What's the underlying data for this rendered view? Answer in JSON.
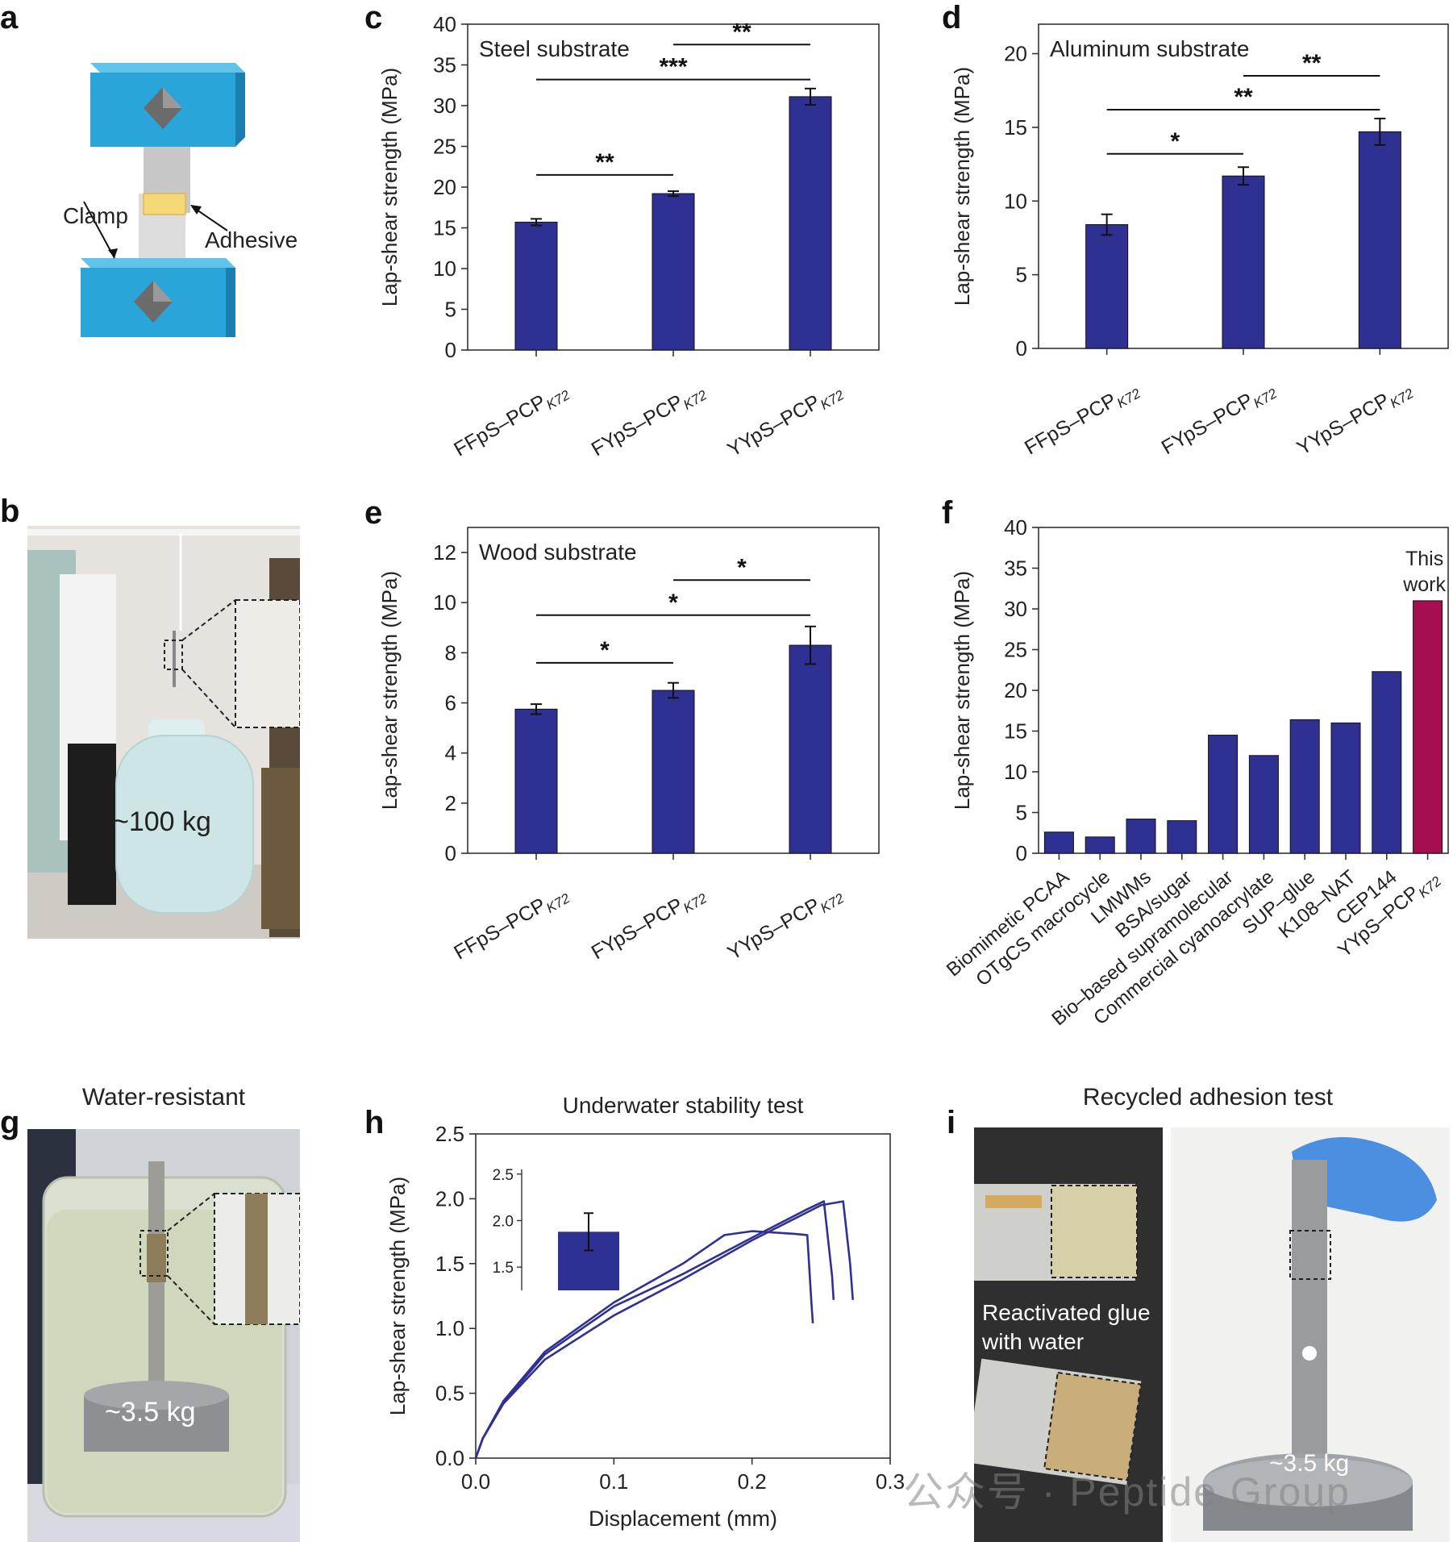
{
  "panels": {
    "a": {
      "letter": "a",
      "clamp_label": "Clamp",
      "adhesive_label": "Adhesive"
    },
    "b": {
      "letter": "b",
      "weight_label": "~100 kg"
    },
    "c": {
      "letter": "c"
    },
    "d": {
      "letter": "d"
    },
    "e": {
      "letter": "e"
    },
    "f": {
      "letter": "f"
    },
    "g": {
      "letter": "g",
      "title": "Water-resistant",
      "weight_label": "~3.5 kg"
    },
    "h": {
      "letter": "h"
    },
    "i": {
      "letter": "i",
      "title": "Recycled adhesion test",
      "note_line1": "Reactivated glue",
      "note_line2": "with water",
      "weight_label": "~3.5 kg"
    }
  },
  "watermark": {
    "text": "公众号 · Peptide Group"
  },
  "colors": {
    "bar": "#2e3192",
    "highlight": "#a50f52",
    "axis": "#333333",
    "clamp": "#2aa5d9",
    "adhesive": "#f5d878"
  },
  "chart_data": [
    {
      "id": "c",
      "type": "bar",
      "title": "Steel substrate",
      "ylabel": "Lap-shear strength (MPa)",
      "categories": [
        "FFpS–PCP",
        "FYpS–PCP",
        "YYpS–PCP"
      ],
      "category_subscript": "K72",
      "values": [
        15.7,
        19.2,
        31.1
      ],
      "errors": [
        0.4,
        0.3,
        1.0
      ],
      "ylim": [
        0,
        40
      ],
      "yticks": [
        0,
        5,
        10,
        15,
        20,
        25,
        30,
        35,
        40
      ],
      "significance": [
        {
          "from": 0,
          "to": 1,
          "level": 21.5,
          "label": "**"
        },
        {
          "from": 0,
          "to": 2,
          "level": 33.2,
          "label": "***"
        },
        {
          "from": 1,
          "to": 2,
          "level": 37.5,
          "label": "**"
        }
      ]
    },
    {
      "id": "d",
      "type": "bar",
      "title": "Aluminum substrate",
      "ylabel": "Lap-shear strength (MPa)",
      "categories": [
        "FFpS–PCP",
        "FYpS–PCP",
        "YYpS–PCP"
      ],
      "category_subscript": "K72",
      "values": [
        8.4,
        11.7,
        14.7
      ],
      "errors": [
        0.7,
        0.6,
        0.9
      ],
      "ylim": [
        0,
        22
      ],
      "yticks": [
        0,
        5,
        10,
        15,
        20
      ],
      "significance": [
        {
          "from": 0,
          "to": 1,
          "level": 13.2,
          "label": "*"
        },
        {
          "from": 0,
          "to": 2,
          "level": 16.2,
          "label": "**"
        },
        {
          "from": 1,
          "to": 2,
          "level": 18.5,
          "label": "**"
        }
      ]
    },
    {
      "id": "e",
      "type": "bar",
      "title": "Wood substrate",
      "ylabel": "Lap-shear strength (MPa)",
      "categories": [
        "FFpS–PCP",
        "FYpS–PCP",
        "YYpS–PCP"
      ],
      "category_subscript": "K72",
      "values": [
        5.75,
        6.5,
        8.3
      ],
      "errors": [
        0.2,
        0.3,
        0.75
      ],
      "ylim": [
        0,
        13
      ],
      "yticks": [
        0,
        2,
        4,
        6,
        8,
        10,
        12
      ],
      "significance": [
        {
          "from": 0,
          "to": 1,
          "level": 7.6,
          "label": "*"
        },
        {
          "from": 0,
          "to": 2,
          "level": 9.5,
          "label": "*"
        },
        {
          "from": 1,
          "to": 2,
          "level": 10.9,
          "label": "*"
        }
      ]
    },
    {
      "id": "f",
      "type": "bar",
      "ylabel": "Lap-shear strength (MPa)",
      "categories": [
        "Biomimetic PCAA",
        "OTgCS  macrocycle",
        "LMWMs",
        "BSA/sugar",
        "Bio–based supramolecular",
        "Commercial cyanoacrylate",
        "SUP–glue",
        "K108–NAT",
        "CEP144",
        "YYpS–PCP"
      ],
      "last_subscript": "K72",
      "values": [
        2.6,
        2.0,
        4.2,
        4.0,
        14.5,
        12.0,
        16.4,
        16.0,
        22.3,
        31.0
      ],
      "highlight_index": 9,
      "annotation_line1": "This",
      "annotation_line2": "work",
      "ylim": [
        0,
        40
      ],
      "yticks": [
        0,
        5,
        10,
        15,
        20,
        25,
        30,
        35,
        40
      ]
    },
    {
      "id": "h",
      "type": "line",
      "title": "Underwater stability test",
      "xlabel": "Displacement (mm)",
      "ylabel": "Lap-shear strength (MPa)",
      "xlim": [
        0,
        0.3
      ],
      "ylim": [
        0,
        2.5
      ],
      "xticks": [
        0.0,
        0.1,
        0.2,
        0.3
      ],
      "xtick_labels": [
        "0.0",
        "0.1",
        "0.2",
        "0.3"
      ],
      "yticks": [
        0.0,
        0.5,
        1.0,
        1.5,
        2.0,
        2.5
      ],
      "ytick_labels": [
        "0.0",
        "0.5",
        "1.0",
        "1.5",
        "2.0",
        "2.5"
      ],
      "series": [
        {
          "x": [
            0,
            0.005,
            0.02,
            0.05,
            0.1,
            0.15,
            0.2,
            0.24,
            0.252,
            0.258,
            0.259
          ],
          "y": [
            0,
            0.15,
            0.43,
            0.8,
            1.17,
            1.42,
            1.7,
            1.92,
            1.98,
            1.4,
            1.22
          ]
        },
        {
          "x": [
            0,
            0.005,
            0.02,
            0.05,
            0.1,
            0.15,
            0.18,
            0.2,
            0.23,
            0.24,
            0.243,
            0.244
          ],
          "y": [
            0,
            0.15,
            0.44,
            0.82,
            1.2,
            1.5,
            1.72,
            1.75,
            1.73,
            1.72,
            1.2,
            1.04
          ]
        },
        {
          "x": [
            0,
            0.005,
            0.02,
            0.05,
            0.1,
            0.15,
            0.2,
            0.25,
            0.266,
            0.271,
            0.273
          ],
          "y": [
            0,
            0.15,
            0.42,
            0.76,
            1.1,
            1.38,
            1.68,
            1.95,
            1.98,
            1.5,
            1.22
          ]
        }
      ],
      "inset": {
        "type": "bar",
        "value": 1.88,
        "error": 0.2,
        "ylim": [
          1.25,
          2.55
        ],
        "yticks": [
          1.5,
          2.0,
          2.5
        ],
        "ytick_labels": [
          "1.5",
          "2.0",
          "2.5"
        ]
      }
    }
  ]
}
